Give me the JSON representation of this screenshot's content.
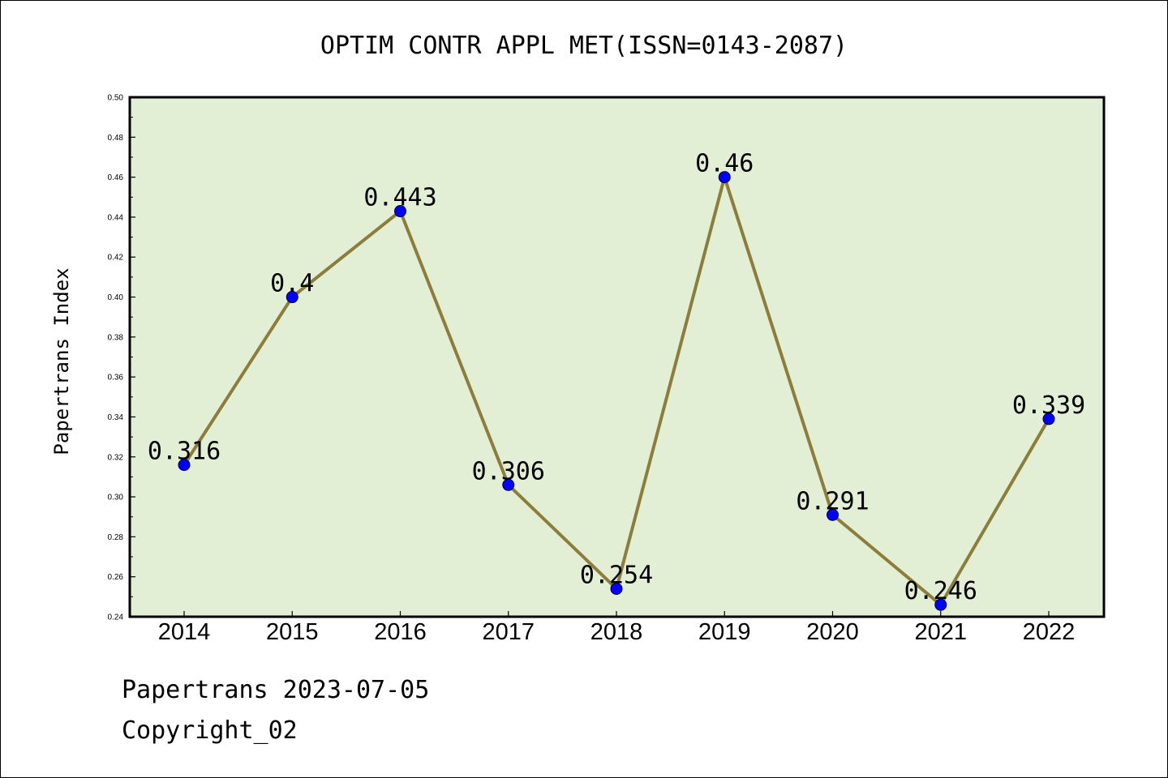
{
  "chart_data": {
    "type": "line",
    "title": "OPTIM CONTR APPL MET(ISSN=0143-2087)",
    "xlabel": "",
    "ylabel": "Papertrans Index",
    "categories": [
      "2014",
      "2015",
      "2016",
      "2017",
      "2018",
      "2019",
      "2020",
      "2021",
      "2022"
    ],
    "series": [
      {
        "values": [
          0.316,
          0.4,
          0.443,
          0.306,
          0.254,
          0.46,
          0.291,
          0.246,
          0.339
        ],
        "labels": [
          "0.316",
          "0.4",
          "0.443",
          "0.306",
          "0.254",
          "0.46",
          "0.291",
          "0.246",
          "0.339"
        ]
      }
    ],
    "ylim": [
      0.24,
      0.5
    ],
    "yticks": [
      "0.24",
      "0.26",
      "0.28",
      "0.30",
      "0.32",
      "0.34",
      "0.36",
      "0.38",
      "0.40",
      "0.42",
      "0.44",
      "0.46",
      "0.48",
      "0.50"
    ],
    "grid": false,
    "colors": {
      "plot_background": "#e2efd5",
      "line": "#8c7d3a",
      "marker": "#0000ff"
    }
  },
  "footer": {
    "source": "Papertrans 2023-07-05",
    "copyright": "Copyright_02"
  }
}
